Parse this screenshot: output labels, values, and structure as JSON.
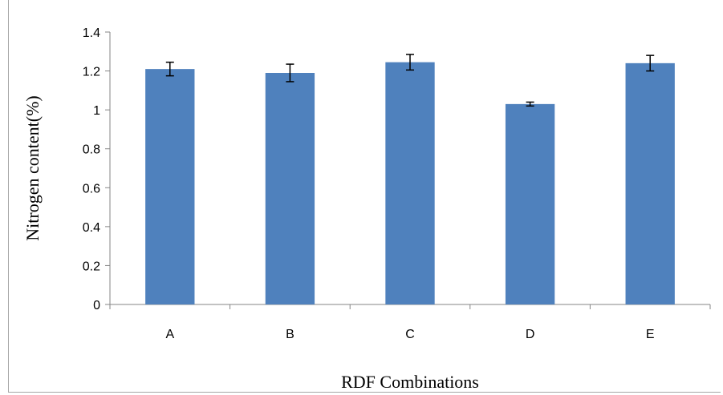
{
  "chart_data": {
    "type": "bar",
    "title": "",
    "xlabel": "RDF Combinations",
    "ylabel": "Nitrogen content(%)",
    "categories": [
      "A",
      "B",
      "C",
      "D",
      "E"
    ],
    "values": [
      1.21,
      1.19,
      1.245,
      1.03,
      1.24
    ],
    "errors": [
      0.035,
      0.045,
      0.04,
      0.01,
      0.04
    ],
    "ylim": [
      0,
      1.4
    ],
    "yticks": [
      0,
      0.2,
      0.4,
      0.6,
      0.8,
      1,
      1.2,
      1.4
    ],
    "ytick_labels": [
      "0",
      "0.2",
      "0.4",
      "0.6",
      "0.8",
      "1",
      "1.2",
      "1.4"
    ],
    "bar_color": "#4f81bd",
    "grid": false,
    "legend": "none"
  }
}
